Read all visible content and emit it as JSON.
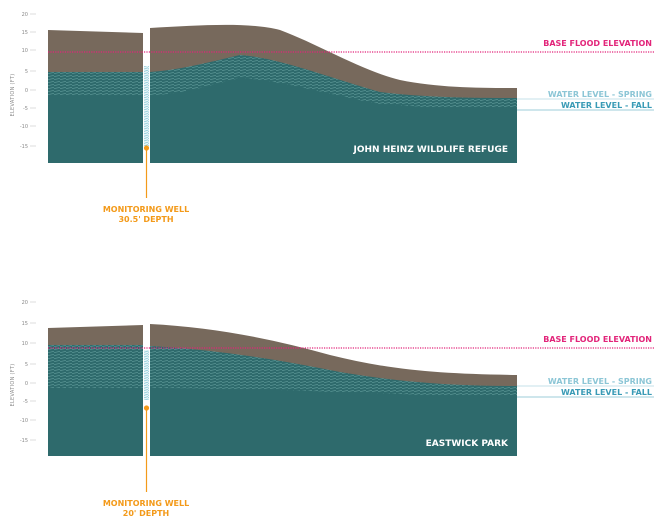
{
  "colors": {
    "soil": "#77695c",
    "water_zone": "#2e6a6c",
    "hatch": "#5e9b9a",
    "flood": "#e2257a",
    "spring": "#8cc6d6",
    "fall": "#3a9bb6",
    "well": "#f39a1a",
    "axis_text": "#8a8a8a"
  },
  "charts": [
    {
      "site_label": "JOHN HEINZ WILDLIFE REFUGE",
      "y_axis_label": "ELEVATION (FT)",
      "y_ticks": [
        "20",
        "15",
        "10",
        "5",
        "0",
        "-5",
        "-10",
        "-15"
      ],
      "base_flood_label": "BASE FLOOD ELEVATION",
      "spring_label": "WATER LEVEL - SPRING",
      "fall_label": "WATER LEVEL - FALL",
      "well_label_line1": "MONITORING WELL",
      "well_label_line2": "30.5' DEPTH"
    },
    {
      "site_label": "EASTWICK PARK",
      "y_axis_label": "ELEVATION (FT)",
      "y_ticks": [
        "20",
        "15",
        "10",
        "5",
        "0",
        "-5",
        "-10",
        "-15"
      ],
      "base_flood_label": "BASE FLOOD ELEVATION",
      "spring_label": "WATER LEVEL - SPRING",
      "fall_label": "WATER LEVEL - FALL",
      "well_label_line1": "MONITORING WELL",
      "well_label_line2": "20' DEPTH"
    }
  ]
}
